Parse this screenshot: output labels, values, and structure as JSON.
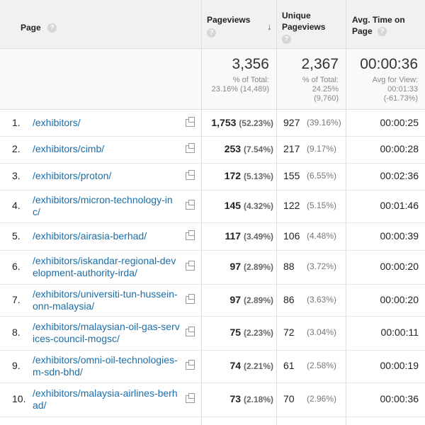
{
  "header": {
    "page": "Page",
    "pageviews": "Pageviews",
    "unique_pageviews_1": "Unique",
    "unique_pageviews_2": "Pageviews",
    "avg_time_1": "Avg. Time on",
    "avg_time_2": "Page",
    "sort_icon": "arrow-down-icon",
    "help_icon": "help-icon"
  },
  "totals": {
    "pageviews": "3,356",
    "pageviews_sub1": "% of Total:",
    "pageviews_sub2": "23.16% (14,489)",
    "unique": "2,367",
    "unique_sub1": "% of Total:",
    "unique_sub2": "24.25%",
    "unique_sub3": "(9,760)",
    "avg_time": "00:00:36",
    "avg_sub1": "Avg for View:",
    "avg_sub2": "00:01:33",
    "avg_sub3": "(-61.73%)"
  },
  "rows": [
    {
      "idx": "1.",
      "url1": "/exhibitors/",
      "url2": "",
      "pv": "1,753",
      "pvp": "(52.23%)",
      "up": "927",
      "upp": "(39.16%)",
      "at": "00:00:25"
    },
    {
      "idx": "2.",
      "url1": "/exhibitors/cimb/",
      "url2": "",
      "pv": "253",
      "pvp": "(7.54%)",
      "up": "217",
      "upp": "(9.17%)",
      "at": "00:00:28"
    },
    {
      "idx": "3.",
      "url1": "/exhibitors/proton/",
      "url2": "",
      "pv": "172",
      "pvp": "(5.13%)",
      "up": "155",
      "upp": "(6.55%)",
      "at": "00:02:36"
    },
    {
      "idx": "4.",
      "url1": "/exhibitors/micron-technology-in",
      "url2": "c/",
      "pv": "145",
      "pvp": "(4.32%)",
      "up": "122",
      "upp": "(5.15%)",
      "at": "00:01:46"
    },
    {
      "idx": "5.",
      "url1": "/exhibitors/airasia-berhad/",
      "url2": "",
      "pv": "117",
      "pvp": "(3.49%)",
      "up": "106",
      "upp": "(4.48%)",
      "at": "00:00:39"
    },
    {
      "idx": "6.",
      "url1": "/exhibitors/iskandar-regional-dev",
      "url2": "elopment-authority-irda/",
      "pv": "97",
      "pvp": "(2.89%)",
      "up": "88",
      "upp": "(3.72%)",
      "at": "00:00:20"
    },
    {
      "idx": "7.",
      "url1": "/exhibitors/universiti-tun-hussein-",
      "url2": "onn-malaysia/",
      "pv": "97",
      "pvp": "(2.89%)",
      "up": "86",
      "upp": "(3.63%)",
      "at": "00:00:20"
    },
    {
      "idx": "8.",
      "url1": "/exhibitors/malaysian-oil-gas-serv",
      "url2": "ices-council-mogsc/",
      "pv": "75",
      "pvp": "(2.23%)",
      "up": "72",
      "upp": "(3.04%)",
      "at": "00:00:11"
    },
    {
      "idx": "9.",
      "url1": "/exhibitors/omni-oil-technologies-",
      "url2": "m-sdn-bhd/",
      "pv": "74",
      "pvp": "(2.21%)",
      "up": "61",
      "upp": "(2.58%)",
      "at": "00:00:19"
    },
    {
      "idx": "10.",
      "url1": "/exhibitors/malaysia-airlines-berh",
      "url2": "ad/",
      "pv": "73",
      "pvp": "(2.18%)",
      "up": "70",
      "upp": "(2.96%)",
      "at": "00:00:36"
    }
  ]
}
